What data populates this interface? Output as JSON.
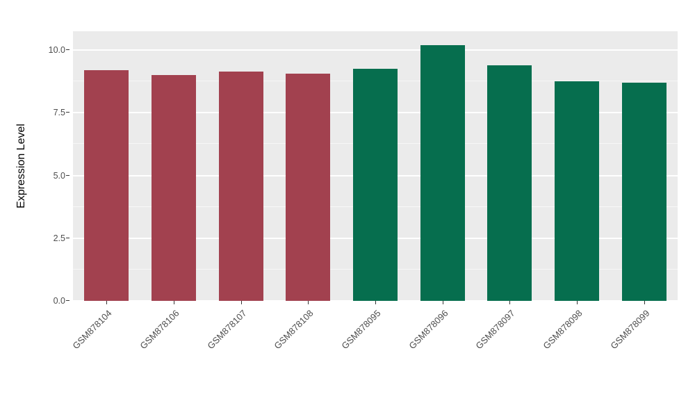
{
  "chart_data": {
    "type": "bar",
    "title": "",
    "xlabel": "",
    "ylabel": "Expression Level",
    "categories": [
      "GSM878104",
      "GSM878106",
      "GSM878107",
      "GSM878108",
      "GSM878095",
      "GSM878096",
      "GSM878097",
      "GSM878098",
      "GSM878099"
    ],
    "values": [
      9.2,
      9.0,
      9.15,
      9.05,
      9.25,
      10.2,
      9.4,
      8.75,
      8.7
    ],
    "bar_colors": [
      "#A2414F",
      "#A2414F",
      "#A2414F",
      "#A2414F",
      "#066E4E",
      "#066E4E",
      "#066E4E",
      "#066E4E",
      "#066E4E"
    ],
    "groups": [
      {
        "name": "group-red",
        "color": "#A2414F",
        "members": [
          "GSM878104",
          "GSM878106",
          "GSM878107",
          "GSM878108"
        ]
      },
      {
        "name": "group-green",
        "color": "#066E4E",
        "members": [
          "GSM878095",
          "GSM878096",
          "GSM878097",
          "GSM878098",
          "GSM878099"
        ]
      }
    ],
    "yticks": [
      0,
      2.5,
      5,
      7.5,
      10
    ],
    "ytick_labels": [
      "0.0",
      "2.5",
      "5.0",
      "7.5",
      "10.0"
    ],
    "minor_gridlines": [
      1.25,
      3.75,
      6.25,
      8.75
    ],
    "ylim": [
      0,
      10.75
    ],
    "grid": true,
    "legend_position": "none",
    "panel_bg": "#EBEBEB",
    "grid_color": "#FFFFFF"
  }
}
